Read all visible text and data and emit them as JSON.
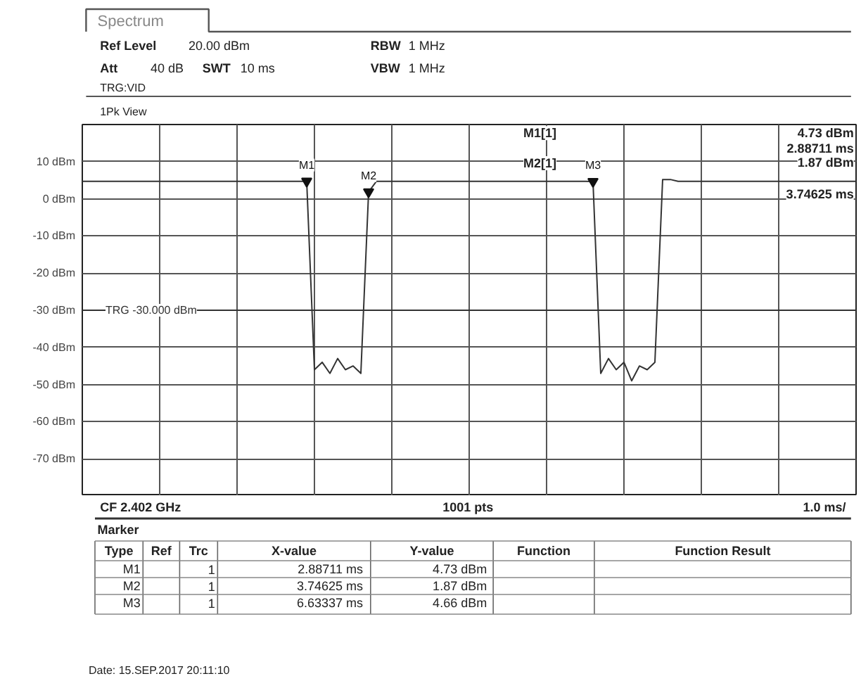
{
  "chart_data": {
    "type": "line",
    "title": "Spectrum",
    "categories": [
      null,
      null,
      null,
      null,
      null,
      null,
      null,
      null,
      null,
      null,
      null,
      null,
      null,
      null,
      null,
      null,
      null,
      null,
      null,
      null,
      null,
      null,
      null,
      null,
      null,
      null,
      null,
      null,
      null,
      null,
      null,
      null,
      null,
      null,
      null,
      null,
      null,
      null,
      null,
      null,
      null,
      null,
      null,
      null,
      null,
      null,
      null,
      null,
      null,
      null,
      null,
      null,
      null,
      null,
      null,
      null,
      null,
      null,
      null,
      null,
      null,
      null,
      null,
      null,
      null,
      null,
      null,
      null,
      null,
      null,
      null,
      null,
      null,
      null,
      null,
      null,
      null,
      null,
      null,
      null,
      null,
      null,
      null,
      null,
      null,
      null,
      null,
      null,
      null,
      null,
      null,
      null,
      null,
      null,
      null,
      null,
      null,
      null,
      null,
      null,
      null
    ],
    "series": [
      {
        "color": "#333333",
        "values": [
          4.7,
          4.7,
          4.7,
          4.7,
          4.7,
          4.7,
          4.7,
          4.7,
          4.7,
          4.7,
          4.7,
          4.7,
          4.7,
          4.7,
          4.7,
          4.7,
          4.7,
          4.7,
          4.7,
          4.7,
          4.7,
          4.7,
          4.7,
          4.7,
          4.7,
          4.7,
          4.7,
          4.7,
          4.7,
          4.73,
          -46,
          -44,
          -47,
          -43,
          -46,
          -45,
          -47,
          1.87,
          4.7,
          4.7,
          4.7,
          4.7,
          4.7,
          4.7,
          4.7,
          4.7,
          4.7,
          4.7,
          4.7,
          4.7,
          4.7,
          4.7,
          4.7,
          4.7,
          4.7,
          4.7,
          4.7,
          4.7,
          4.7,
          4.7,
          4.7,
          4.7,
          4.7,
          4.7,
          4.7,
          4.7,
          4.66,
          -47,
          -43,
          -46,
          -44,
          -49,
          -45,
          -46,
          -44,
          5.2,
          5.2,
          4.7,
          4.7,
          4.7,
          4.7,
          4.7,
          4.7,
          4.7,
          4.7,
          4.7,
          4.7,
          4.7,
          4.7,
          4.7,
          4.7,
          4.7,
          4.7,
          4.7,
          4.7,
          4.7,
          4.7,
          4.7,
          4.7,
          4.7,
          4.7
        ]
      }
    ],
    "ylim": [
      -80,
      20
    ],
    "yticks": [
      {
        "value": 10,
        "label": "10 dBm"
      },
      {
        "value": 0,
        "label": "0 dBm"
      },
      {
        "value": -10,
        "label": "-10 dBm"
      },
      {
        "value": -20,
        "label": "-20 dBm"
      },
      {
        "value": -30,
        "label": "-30 dBm"
      },
      {
        "value": -40,
        "label": "-40 dBm"
      },
      {
        "value": -50,
        "label": "-50 dBm"
      },
      {
        "value": -60,
        "label": "-60 dBm"
      },
      {
        "value": -70,
        "label": "-70 dBm"
      }
    ],
    "tick_labels": "y",
    "grid": true,
    "line_style": "solid",
    "ref_lines": [
      {
        "axis": "y",
        "value": -30,
        "label": "TRG -30.000 dBm",
        "color": "#333333"
      }
    ],
    "annotations": [
      "Ref Level 20.00 dBm",
      "Att 40 dB",
      "SWT 10 ms",
      "RBW 1 MHz",
      "VBW 1 MHz",
      "TRG:VID",
      "1Pk View",
      "CF 2.402 GHz",
      "1001 pts",
      "1.0 ms/",
      "M1[1]",
      "4.73 dBm",
      "2.88711 ms",
      "M2[1]",
      "1.87 dBm",
      "3.74625 ms",
      {
        "text": "M1",
        "y": 4.73
      },
      {
        "text": "M2",
        "y": 1.87
      },
      {
        "text": "M3",
        "y": 4.66
      },
      "Marker",
      "Type",
      "Ref",
      "Trc",
      "X-value",
      "Y-value",
      "Function",
      "Function Result",
      "M1",
      "1",
      "2.88711 ms",
      "4.73 dBm",
      "M2",
      "1",
      "3.74625 ms",
      "1.87 dBm",
      "M3",
      "1",
      "6.63337 ms",
      "4.66 dBm",
      "Date: 15.SEP.2017  20:11:10"
    ]
  }
}
